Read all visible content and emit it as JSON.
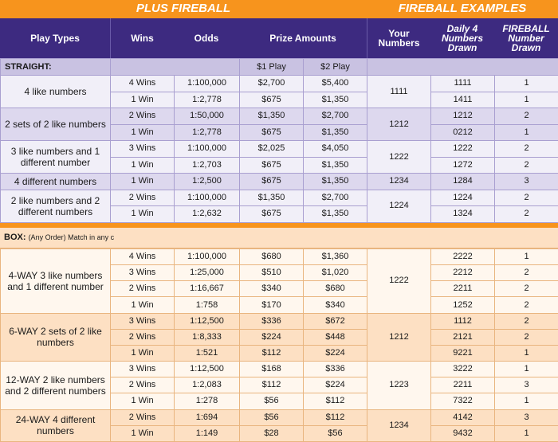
{
  "banner": {
    "left": "PLUS FIREBALL",
    "right": "FIREBALL EXAMPLES"
  },
  "headers": {
    "play_types": "Play Types",
    "wins": "Wins",
    "odds": "Odds",
    "prize_amounts": "Prize Amounts",
    "your_numbers": "Your Numbers",
    "daily4_drawn": "Daily 4 Numbers Drawn",
    "fireball_drawn": "FIREBALL Number Drawn"
  },
  "straight": {
    "label": "STRAIGHT:",
    "play1": "$1 Play",
    "play2": "$2 Play",
    "groups": [
      {
        "type": "4 like numbers",
        "your": "1111",
        "rows": [
          {
            "wins": "4 Wins",
            "odds": "1:100,000",
            "p1": "$2,700",
            "p2": "$5,400",
            "drawn": "1111",
            "fb": "1"
          },
          {
            "wins": "1 Win",
            "odds": "1:2,778",
            "p1": "$675",
            "p2": "$1,350",
            "drawn": "1411",
            "fb": "1"
          }
        ]
      },
      {
        "type": "2 sets of 2 like numbers",
        "your": "1212",
        "rows": [
          {
            "wins": "2 Wins",
            "odds": "1:50,000",
            "p1": "$1,350",
            "p2": "$2,700",
            "drawn": "1212",
            "fb": "2"
          },
          {
            "wins": "1 Win",
            "odds": "1:2,778",
            "p1": "$675",
            "p2": "$1,350",
            "drawn": "0212",
            "fb": "1"
          }
        ]
      },
      {
        "type": "3 like numbers and 1 different number",
        "your": "1222",
        "rows": [
          {
            "wins": "3 Wins",
            "odds": "1:100,000",
            "p1": "$2,025",
            "p2": "$4,050",
            "drawn": "1222",
            "fb": "2"
          },
          {
            "wins": "1 Win",
            "odds": "1:2,703",
            "p1": "$675",
            "p2": "$1,350",
            "drawn": "1272",
            "fb": "2"
          }
        ]
      },
      {
        "type": "4 different numbers",
        "your": "1234",
        "rows": [
          {
            "wins": "1 Win",
            "odds": "1:2,500",
            "p1": "$675",
            "p2": "$1,350",
            "drawn": "1284",
            "fb": "3"
          }
        ]
      },
      {
        "type": "2 like numbers and 2 different numbers",
        "your": "1224",
        "rows": [
          {
            "wins": "2 Wins",
            "odds": "1:100,000",
            "p1": "$1,350",
            "p2": "$2,700",
            "drawn": "1224",
            "fb": "2"
          },
          {
            "wins": "1 Win",
            "odds": "1:2,632",
            "p1": "$675",
            "p2": "$1,350",
            "drawn": "1324",
            "fb": "2"
          }
        ]
      }
    ]
  },
  "box": {
    "label": "BOX:",
    "sublabel": "(Any Order) Match in any c",
    "groups": [
      {
        "type": "4-WAY 3 like numbers and 1 different number",
        "your": "1222",
        "rows": [
          {
            "wins": "4 Wins",
            "odds": "1:100,000",
            "p1": "$680",
            "p2": "$1,360",
            "drawn": "2222",
            "fb": "1"
          },
          {
            "wins": "3 Wins",
            "odds": "1:25,000",
            "p1": "$510",
            "p2": "$1,020",
            "drawn": "2212",
            "fb": "2"
          },
          {
            "wins": "2 Wins",
            "odds": "1:16,667",
            "p1": "$340",
            "p2": "$680",
            "drawn": "2211",
            "fb": "2"
          },
          {
            "wins": "1 Win",
            "odds": "1:758",
            "p1": "$170",
            "p2": "$340",
            "drawn": "1252",
            "fb": "2"
          }
        ]
      },
      {
        "type": "6-WAY 2 sets of 2 like numbers",
        "your": "1212",
        "rows": [
          {
            "wins": "3 Wins",
            "odds": "1:12,500",
            "p1": "$336",
            "p2": "$672",
            "drawn": "1112",
            "fb": "2"
          },
          {
            "wins": "2 Wins",
            "odds": "1:8,333",
            "p1": "$224",
            "p2": "$448",
            "drawn": "2121",
            "fb": "2"
          },
          {
            "wins": "1 Win",
            "odds": "1:521",
            "p1": "$112",
            "p2": "$224",
            "drawn": "9221",
            "fb": "1"
          }
        ]
      },
      {
        "type": "12-WAY 2 like numbers and 2 different numbers",
        "your": "1223",
        "rows": [
          {
            "wins": "3 Wins",
            "odds": "1:12,500",
            "p1": "$168",
            "p2": "$336",
            "drawn": "3222",
            "fb": "1"
          },
          {
            "wins": "2 Wins",
            "odds": "1:2,083",
            "p1": "$112",
            "p2": "$224",
            "drawn": "2211",
            "fb": "3"
          },
          {
            "wins": "1 Win",
            "odds": "1:278",
            "p1": "$56",
            "p2": "$112",
            "drawn": "7322",
            "fb": "1"
          }
        ]
      },
      {
        "type": "24-WAY 4 different numbers",
        "your": "1234",
        "rows": [
          {
            "wins": "2 Wins",
            "odds": "1:694",
            "p1": "$56",
            "p2": "$112",
            "drawn": "4142",
            "fb": "3"
          },
          {
            "wins": "1 Win",
            "odds": "1:149",
            "p1": "$28",
            "p2": "$56",
            "drawn": "9432",
            "fb": "1"
          }
        ]
      }
    ]
  },
  "colors": {
    "banner": "#f7941d",
    "header": "#3d2a80",
    "straight_light": "#f1eff8",
    "straight_dark": "#ddd8ee",
    "straight_section": "#c9c2e2",
    "box_light": "#fff7ee",
    "box_dark": "#fde0c3"
  }
}
